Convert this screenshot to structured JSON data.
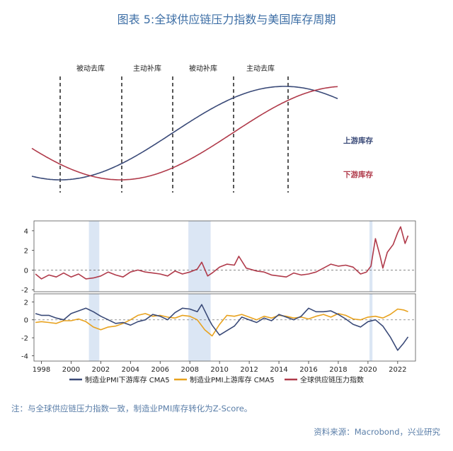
{
  "title": "图表 5:全球供应链压力指数与美国库存周期",
  "colors": {
    "upstream": "#3a4a78",
    "downstream": "#b03a4a",
    "pressure": "#b03a4a",
    "manuf_down": "#3a4a78",
    "manuf_up": "#e8a21e",
    "shade": "#dbe6f4",
    "title": "#3e6fa6"
  },
  "chart_data": [
    {
      "type": "line",
      "title": "",
      "phases": [
        "被动去库",
        "主动补库",
        "被动补库",
        "主动去库"
      ],
      "series": [
        {
          "name": "上游库存"
        },
        {
          "name": "下游库存"
        }
      ]
    },
    {
      "type": "line",
      "series_name": "全球供应链压力指数",
      "yticks": [
        4,
        2,
        0,
        -2
      ],
      "ylim": [
        -2.2,
        5.0
      ],
      "xlim": [
        1997.5,
        2023.2
      ],
      "points": [
        [
          1997.6,
          -0.4
        ],
        [
          1998.0,
          -0.9
        ],
        [
          1998.5,
          -0.5
        ],
        [
          1999.0,
          -0.7
        ],
        [
          1999.5,
          -0.3
        ],
        [
          2000.0,
          -0.7
        ],
        [
          2000.5,
          -0.4
        ],
        [
          2001.0,
          -0.9
        ],
        [
          2001.5,
          -0.8
        ],
        [
          2002.0,
          -0.6
        ],
        [
          2002.5,
          -0.2
        ],
        [
          2003.0,
          -0.5
        ],
        [
          2003.5,
          -0.7
        ],
        [
          2004.0,
          -0.2
        ],
        [
          2004.5,
          0.0
        ],
        [
          2005.0,
          -0.2
        ],
        [
          2005.5,
          -0.3
        ],
        [
          2006.0,
          -0.4
        ],
        [
          2006.5,
          -0.6
        ],
        [
          2007.0,
          -0.1
        ],
        [
          2007.5,
          -0.4
        ],
        [
          2008.0,
          -0.2
        ],
        [
          2008.5,
          0.1
        ],
        [
          2008.8,
          0.8
        ],
        [
          2009.2,
          -0.6
        ],
        [
          2009.5,
          -0.3
        ],
        [
          2010.0,
          0.3
        ],
        [
          2010.5,
          0.6
        ],
        [
          2011.0,
          0.5
        ],
        [
          2011.3,
          1.4
        ],
        [
          2011.8,
          0.2
        ],
        [
          2012.5,
          -0.1
        ],
        [
          2013.0,
          -0.2
        ],
        [
          2013.5,
          -0.5
        ],
        [
          2014.0,
          -0.6
        ],
        [
          2014.5,
          -0.7
        ],
        [
          2015.0,
          -0.3
        ],
        [
          2015.5,
          -0.5
        ],
        [
          2016.0,
          -0.4
        ],
        [
          2016.5,
          -0.2
        ],
        [
          2017.0,
          0.2
        ],
        [
          2017.5,
          0.6
        ],
        [
          2018.0,
          0.4
        ],
        [
          2018.5,
          0.5
        ],
        [
          2019.0,
          0.3
        ],
        [
          2019.5,
          -0.4
        ],
        [
          2019.9,
          -0.2
        ],
        [
          2020.2,
          0.4
        ],
        [
          2020.5,
          3.2
        ],
        [
          2020.8,
          1.5
        ],
        [
          2021.0,
          0.2
        ],
        [
          2021.3,
          1.8
        ],
        [
          2021.7,
          2.6
        ],
        [
          2022.0,
          3.8
        ],
        [
          2022.2,
          4.4
        ],
        [
          2022.5,
          2.7
        ],
        [
          2022.7,
          3.5
        ]
      ]
    },
    {
      "type": "line",
      "yticks": [
        2,
        0,
        -2,
        -4
      ],
      "ylim": [
        -4.6,
        2.9
      ],
      "xlim": [
        1997.5,
        2023.2
      ],
      "xticks": [
        "1998",
        "2000",
        "2002",
        "2004",
        "2006",
        "2008",
        "2010",
        "2012",
        "2014",
        "2016",
        "2018",
        "2020",
        "2022"
      ],
      "series": [
        {
          "name": "制造业PMI下游库存 CMA5",
          "points": [
            [
              1997.6,
              0.7
            ],
            [
              1998.0,
              0.5
            ],
            [
              1998.5,
              0.5
            ],
            [
              1999.0,
              0.2
            ],
            [
              1999.5,
              0.0
            ],
            [
              2000.0,
              0.7
            ],
            [
              2000.5,
              1.0
            ],
            [
              2001.0,
              1.3
            ],
            [
              2001.5,
              0.9
            ],
            [
              2002.0,
              0.4
            ],
            [
              2002.5,
              0.0
            ],
            [
              2003.0,
              -0.4
            ],
            [
              2003.5,
              -0.3
            ],
            [
              2004.0,
              -0.6
            ],
            [
              2004.5,
              -0.2
            ],
            [
              2005.0,
              0.0
            ],
            [
              2005.5,
              0.6
            ],
            [
              2006.0,
              0.4
            ],
            [
              2006.5,
              0.0
            ],
            [
              2007.0,
              0.8
            ],
            [
              2007.5,
              1.3
            ],
            [
              2008.0,
              1.2
            ],
            [
              2008.5,
              0.9
            ],
            [
              2008.8,
              1.7
            ],
            [
              2009.3,
              0.0
            ],
            [
              2009.5,
              -0.6
            ],
            [
              2010.0,
              -1.7
            ],
            [
              2010.5,
              -1.2
            ],
            [
              2011.0,
              -0.7
            ],
            [
              2011.5,
              0.3
            ],
            [
              2012.0,
              0.0
            ],
            [
              2012.5,
              -0.3
            ],
            [
              2013.0,
              0.2
            ],
            [
              2013.5,
              -0.1
            ],
            [
              2014.0,
              0.6
            ],
            [
              2014.5,
              0.3
            ],
            [
              2015.0,
              0.0
            ],
            [
              2015.5,
              0.4
            ],
            [
              2016.0,
              1.3
            ],
            [
              2016.5,
              0.9
            ],
            [
              2017.0,
              0.9
            ],
            [
              2017.5,
              1.0
            ],
            [
              2018.0,
              0.6
            ],
            [
              2018.5,
              0.1
            ],
            [
              2019.0,
              -0.5
            ],
            [
              2019.5,
              -0.8
            ],
            [
              2020.0,
              -0.2
            ],
            [
              2020.5,
              0.0
            ],
            [
              2021.0,
              -0.7
            ],
            [
              2021.5,
              -1.9
            ],
            [
              2022.0,
              -3.4
            ],
            [
              2022.4,
              -2.6
            ],
            [
              2022.7,
              -1.9
            ]
          ]
        },
        {
          "name": "制造业PMI上游库存 CMA5",
          "points": [
            [
              1997.6,
              -0.3
            ],
            [
              1998.0,
              -0.2
            ],
            [
              1998.5,
              -0.3
            ],
            [
              1999.0,
              -0.4
            ],
            [
              1999.5,
              -0.1
            ],
            [
              2000.0,
              -0.1
            ],
            [
              2000.5,
              0.1
            ],
            [
              2001.0,
              -0.2
            ],
            [
              2001.5,
              -0.8
            ],
            [
              2002.0,
              -1.1
            ],
            [
              2002.5,
              -0.8
            ],
            [
              2003.0,
              -0.7
            ],
            [
              2003.5,
              -0.4
            ],
            [
              2004.0,
              0.0
            ],
            [
              2004.5,
              0.5
            ],
            [
              2005.0,
              0.7
            ],
            [
              2005.5,
              0.4
            ],
            [
              2006.0,
              0.5
            ],
            [
              2006.5,
              0.3
            ],
            [
              2007.0,
              0.2
            ],
            [
              2007.5,
              0.5
            ],
            [
              2008.0,
              0.4
            ],
            [
              2008.5,
              0.0
            ],
            [
              2009.0,
              -1.1
            ],
            [
              2009.5,
              -1.8
            ],
            [
              2010.0,
              -0.5
            ],
            [
              2010.5,
              0.5
            ],
            [
              2011.0,
              0.4
            ],
            [
              2011.5,
              0.6
            ],
            [
              2012.0,
              0.3
            ],
            [
              2012.5,
              0.0
            ],
            [
              2013.0,
              0.4
            ],
            [
              2013.5,
              0.2
            ],
            [
              2014.0,
              0.5
            ],
            [
              2014.5,
              0.4
            ],
            [
              2015.0,
              0.2
            ],
            [
              2015.5,
              0.3
            ],
            [
              2016.0,
              0.1
            ],
            [
              2016.5,
              0.4
            ],
            [
              2017.0,
              0.6
            ],
            [
              2017.5,
              0.3
            ],
            [
              2018.0,
              0.7
            ],
            [
              2018.5,
              0.5
            ],
            [
              2019.0,
              0.1
            ],
            [
              2019.5,
              0.0
            ],
            [
              2020.0,
              0.3
            ],
            [
              2020.5,
              0.4
            ],
            [
              2021.0,
              0.2
            ],
            [
              2021.5,
              0.6
            ],
            [
              2022.0,
              1.2
            ],
            [
              2022.4,
              1.1
            ],
            [
              2022.7,
              0.9
            ]
          ]
        }
      ]
    }
  ],
  "legend": [
    "制造业PMI下游库存 CMA5",
    "制造业PMI上游库存 CMA5",
    "全球供应链压力指数"
  ],
  "note": "注：与全球供应链压力指数一致，制造业PMI库存转化为Z-Score。",
  "source": "资料来源：Macrobond，兴业研究"
}
